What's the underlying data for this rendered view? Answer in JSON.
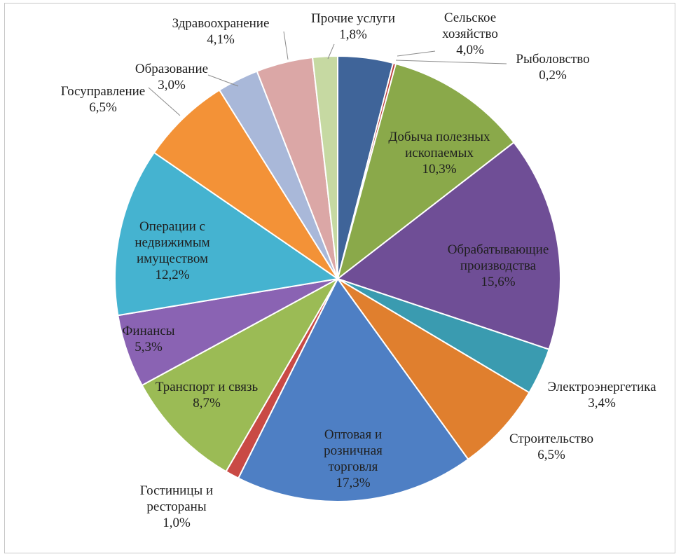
{
  "chart_data": {
    "type": "pie",
    "title": "",
    "start_angle_deg": 0,
    "direction": "clockwise",
    "slices": [
      {
        "label": "Сельское хозяйство",
        "lines": [
          "Сельское",
          "хозяйство"
        ],
        "pct": "4,0%",
        "value": 4.0,
        "color": "#3f6499"
      },
      {
        "label": "Рыболовство",
        "lines": [
          "Рыболовство"
        ],
        "pct": "0,2%",
        "value": 0.2,
        "color": "#b83a37"
      },
      {
        "label": "Добыча полезных ископаемых",
        "lines": [
          "Добыча полезных",
          "ископаемых"
        ],
        "pct": "10,3%",
        "value": 10.3,
        "color": "#8aa94a"
      },
      {
        "label": "Обрабатывающие производства",
        "lines": [
          "Обрабатывающие",
          "производства"
        ],
        "pct": "15,6%",
        "value": 15.6,
        "color": "#6f4e96"
      },
      {
        "label": "Электроэнергетика",
        "lines": [
          "Электроэнергетика"
        ],
        "pct": "3,4%",
        "value": 3.4,
        "color": "#3a9bb0"
      },
      {
        "label": "Строительство",
        "lines": [
          "Строительство"
        ],
        "pct": "6,5%",
        "value": 6.5,
        "color": "#e07f2e"
      },
      {
        "label": "Оптовая и розничная торговля",
        "lines": [
          "Оптовая и",
          "розничная",
          "торговля"
        ],
        "pct": "17,3%",
        "value": 17.3,
        "color": "#4e7fc4"
      },
      {
        "label": "Гостиницы и рестораны",
        "lines": [
          "Гостиницы и",
          "рестораны"
        ],
        "pct": "1,0%",
        "value": 1.0,
        "color": "#c94a45"
      },
      {
        "label": "Транспорт и связь",
        "lines": [
          "Транспорт и связь"
        ],
        "pct": "8,7%",
        "value": 8.7,
        "color": "#9bbb55"
      },
      {
        "label": "Финансы",
        "lines": [
          "Финансы"
        ],
        "pct": "5,3%",
        "value": 5.3,
        "color": "#8a63b3"
      },
      {
        "label": "Операции с недвижимым имуществом",
        "lines": [
          "Операции с",
          "недвижимым",
          "имуществом"
        ],
        "pct": "12,2%",
        "value": 12.2,
        "color": "#45b3d0"
      },
      {
        "label": "Госуправление",
        "lines": [
          "Госуправление"
        ],
        "pct": "6,5%",
        "value": 6.5,
        "color": "#f39237"
      },
      {
        "label": "Образование",
        "lines": [
          "Образование"
        ],
        "pct": "3,0%",
        "value": 3.0,
        "color": "#a9b8d9"
      },
      {
        "label": "Здравоохранение",
        "lines": [
          "Здравоохранение"
        ],
        "pct": "4,1%",
        "value": 4.1,
        "color": "#dba7a6"
      },
      {
        "label": "Прочие услуги",
        "lines": [
          "Прочие услуги"
        ],
        "pct": "1,8%",
        "value": 1.8,
        "color": "#c6d9a2"
      }
    ]
  }
}
